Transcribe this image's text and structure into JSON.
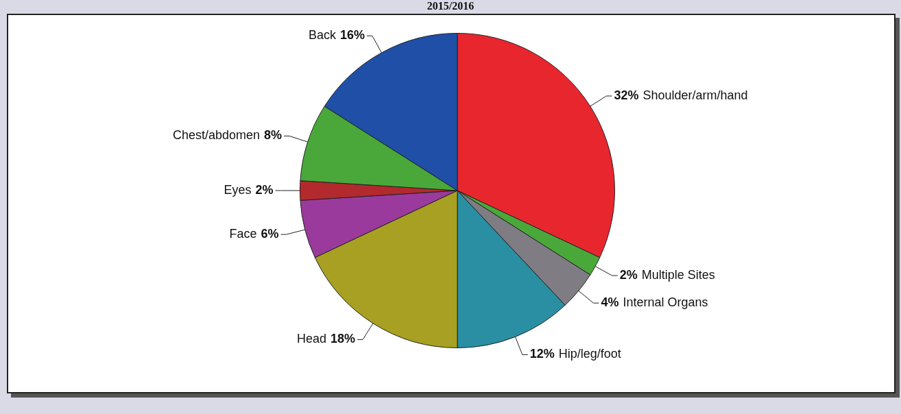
{
  "chart_data": {
    "type": "pie",
    "title": "2015/2016",
    "categories": [
      "Shoulder/arm/hand",
      "Multiple Sites",
      "Internal Organs",
      "Hip/leg/foot",
      "Head",
      "Face",
      "Eyes",
      "Chest/abdomen",
      "Back"
    ],
    "values": [
      32,
      2,
      4,
      12,
      18,
      6,
      2,
      8,
      16
    ],
    "value_labels": [
      "32%",
      "2%",
      "4%",
      "12%",
      "18%",
      "6%",
      "2%",
      "8%",
      "16%"
    ],
    "colors": [
      "#e8262e",
      "#4aa83a",
      "#7f7c84",
      "#2a8fa3",
      "#a8a022",
      "#9a3a9c",
      "#b22a2e",
      "#4aa83a",
      "#1f4fa6"
    ],
    "legend": false
  }
}
